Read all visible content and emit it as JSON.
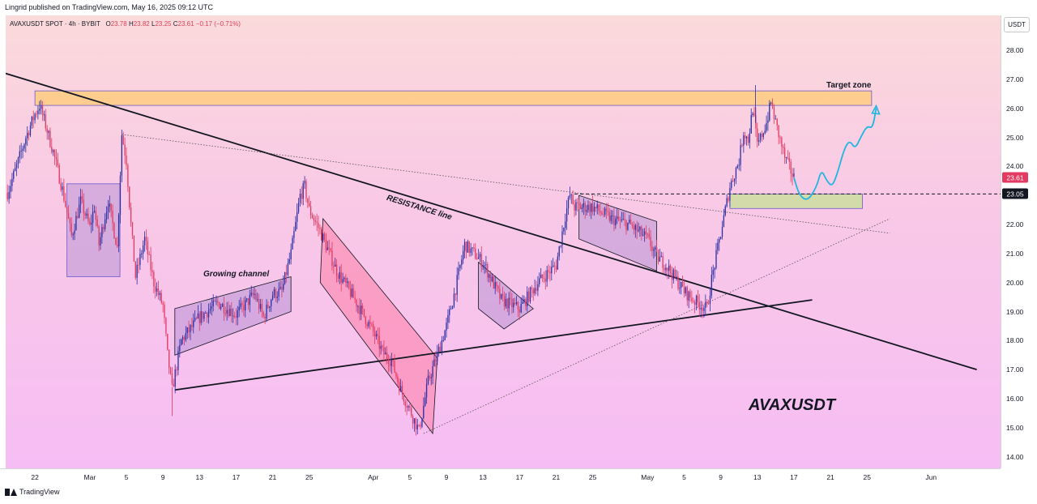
{
  "header": {
    "publisher": "Lingrid published on TradingView.com, May 16, 2025 09:12 UTC"
  },
  "legend": {
    "symbol": "AVAXUSDT SPOT · 4h · BYBIT",
    "o_label": "O",
    "o": "23.78",
    "h_label": "H",
    "h": "23.82",
    "l_label": "L",
    "l": "23.25",
    "c_label": "C",
    "c": "23.61",
    "change": "−0.17 (−0.71%)"
  },
  "footer": {
    "brand": "TradingView"
  },
  "colors": {
    "up": "#2b2fa3",
    "down": "#e33a62",
    "accent": "#2962ff"
  },
  "chart_data": {
    "type": "candlestick",
    "symbol": "AVAXUSDT",
    "timeframe": "4h",
    "unit": "USDT",
    "ylim": [
      13.6,
      29.2
    ],
    "y_ticks": [
      14,
      15,
      16,
      17,
      18,
      19,
      20,
      21,
      22,
      23,
      24,
      25,
      26,
      27,
      28
    ],
    "x_ticks": [
      "22",
      "Mar",
      "5",
      "9",
      "13",
      "17",
      "21",
      "25",
      "Apr",
      "5",
      "9",
      "13",
      "17",
      "21",
      "25",
      "May",
      "5",
      "9",
      "13",
      "17",
      "21",
      "25",
      "Jun"
    ],
    "x_tick_days": [
      -6,
      0,
      4,
      8,
      12,
      16,
      20,
      24,
      31,
      35,
      39,
      43,
      47,
      51,
      55,
      61,
      65,
      69,
      73,
      77,
      81,
      85,
      92
    ],
    "xlim_days": [
      -9.2,
      99.6
    ],
    "grid": false,
    "last_price": "23.61",
    "marked_level": "23.05",
    "price_path": [
      [
        -9,
        23.1
      ],
      [
        -8,
        24.0
      ],
      [
        -7,
        25.0
      ],
      [
        -6,
        25.8
      ],
      [
        -5.5,
        26.1
      ],
      [
        -5,
        25.6
      ],
      [
        -4,
        24.5
      ],
      [
        -3,
        23.2
      ],
      [
        -2,
        21.6
      ],
      [
        -1,
        22.8
      ],
      [
        0,
        21.9
      ],
      [
        0.5,
        22.6
      ],
      [
        1,
        21.3
      ],
      [
        2,
        22.8
      ],
      [
        3,
        21.2
      ],
      [
        3.5,
        25.1
      ],
      [
        4,
        24.2
      ],
      [
        4.5,
        22.0
      ],
      [
        5,
        20.2
      ],
      [
        6,
        21.5
      ],
      [
        7,
        20.0
      ],
      [
        8,
        19.2
      ],
      [
        8.5,
        17.5
      ],
      [
        9,
        16.3
      ],
      [
        10,
        18.0
      ],
      [
        12,
        18.8
      ],
      [
        14,
        19.3
      ],
      [
        16,
        18.9
      ],
      [
        18,
        19.6
      ],
      [
        19,
        18.8
      ],
      [
        20,
        19.6
      ],
      [
        21,
        19.7
      ],
      [
        22,
        21.0
      ],
      [
        23,
        23.0
      ],
      [
        23.5,
        23.3
      ],
      [
        24,
        22.5
      ],
      [
        25,
        21.9
      ],
      [
        27,
        20.4
      ],
      [
        29,
        19.4
      ],
      [
        31,
        18.3
      ],
      [
        32,
        17.6
      ],
      [
        33,
        17.3
      ],
      [
        34,
        16.3
      ],
      [
        35,
        15.6
      ],
      [
        36,
        14.9
      ],
      [
        37,
        16.6
      ],
      [
        38,
        17.5
      ],
      [
        39,
        18.5
      ],
      [
        40,
        19.8
      ],
      [
        41,
        21.3
      ],
      [
        43,
        20.7
      ],
      [
        45,
        19.4
      ],
      [
        47,
        19.1
      ],
      [
        49,
        20.0
      ],
      [
        51,
        20.6
      ],
      [
        52,
        22.3
      ],
      [
        52.5,
        23.0
      ],
      [
        53,
        22.6
      ],
      [
        55,
        22.6
      ],
      [
        57,
        22.2
      ],
      [
        59,
        22.0
      ],
      [
        61,
        21.5
      ],
      [
        62,
        20.9
      ],
      [
        63,
        20.6
      ],
      [
        65,
        19.7
      ],
      [
        66,
        19.4
      ],
      [
        67,
        19.2
      ],
      [
        67.5,
        19.1
      ],
      [
        68,
        20.1
      ],
      [
        69,
        21.7
      ],
      [
        70,
        23.3
      ],
      [
        71,
        24.2
      ],
      [
        71.5,
        25.2
      ],
      [
        72,
        24.9
      ],
      [
        72.5,
        26.0
      ],
      [
        73,
        24.7
      ],
      [
        74,
        25.5
      ],
      [
        74.5,
        26.2
      ],
      [
        75,
        25.5
      ],
      [
        76,
        24.3
      ],
      [
        77,
        23.61
      ]
    ],
    "annotations": [
      "RESISTANCE line",
      "Growing channel",
      "Target zone",
      "AVAXUSDT"
    ]
  }
}
